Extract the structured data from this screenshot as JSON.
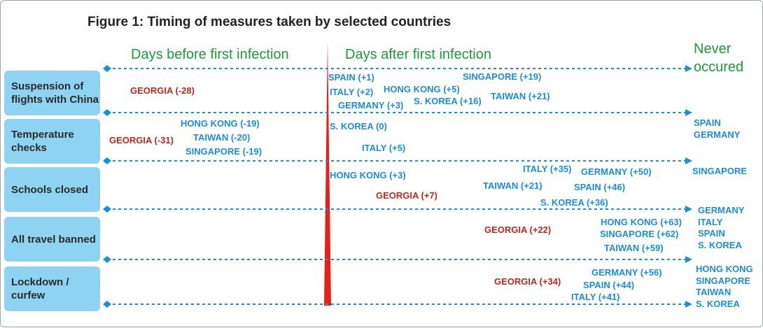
{
  "title": "Figure 1: Timing of measures taken by selected countries",
  "headers": {
    "before": "Days before first infection",
    "after": "Days after first infection",
    "never": "Never occured"
  },
  "colors": {
    "georgia": "#c0281e",
    "other": "#1a8fd6",
    "header": "#1e9a3a",
    "row_box": "#8fd3f2",
    "divider": "#e8201a",
    "axis": "#1a8fd6"
  },
  "chart_data": {
    "type": "scatter",
    "x_unit": "days relative to first infection",
    "categories": [
      "Suspension of flights with China",
      "Temperature checks",
      "Schools closed",
      "All travel banned",
      "Lockdown / curfew"
    ],
    "rows": [
      {
        "measure": "Suspension of flights with China",
        "points": [
          {
            "label": "GEORGIA (-28)",
            "country": "GEORGIA",
            "day": -28
          },
          {
            "label": "SPAIN (+1)",
            "country": "SPAIN",
            "day": 1
          },
          {
            "label": "ITALY (+2)",
            "country": "ITALY",
            "day": 2
          },
          {
            "label": "HONG KONG (+5)",
            "country": "HONG KONG",
            "day": 5
          },
          {
            "label": "GERMANY (+3)",
            "country": "GERMANY",
            "day": 3
          },
          {
            "label": "S. KOREA (+16)",
            "country": "S. KOREA",
            "day": 16
          },
          {
            "label": "SINGAPORE (+19)",
            "country": "SINGAPORE",
            "day": 19
          },
          {
            "label": "TAIWAN (+21)",
            "country": "TAIWAN",
            "day": 21
          }
        ],
        "never": []
      },
      {
        "measure": "Temperature checks",
        "points": [
          {
            "label": "HONG KONG (-19)",
            "country": "HONG KONG",
            "day": -19
          },
          {
            "label": "GEORGIA (-31)",
            "country": "GEORGIA",
            "day": -31
          },
          {
            "label": "TAIWAN (-20)",
            "country": "TAIWAN",
            "day": -20
          },
          {
            "label": "SINGAPORE (-19)",
            "country": "SINGAPORE",
            "day": -19
          },
          {
            "label": "S. KOREA (0)",
            "country": "S. KOREA",
            "day": 0
          },
          {
            "label": "ITALY (+5)",
            "country": "ITALY",
            "day": 5
          }
        ],
        "never": [
          "SPAIN",
          "GERMANY"
        ]
      },
      {
        "measure": "Schools closed",
        "points": [
          {
            "label": "HONG KONG (+3)",
            "country": "HONG KONG",
            "day": 3
          },
          {
            "label": "GEORGIA (+7)",
            "country": "GEORGIA",
            "day": 7
          },
          {
            "label": "ITALY (+35)",
            "country": "ITALY",
            "day": 35
          },
          {
            "label": "GERMANY (+50)",
            "country": "GERMANY",
            "day": 50
          },
          {
            "label": "TAIWAN (+21)",
            "country": "TAIWAN",
            "day": 21
          },
          {
            "label": "SPAIN (+46)",
            "country": "SPAIN",
            "day": 46
          },
          {
            "label": "S. KOREA (+36)",
            "country": "S. KOREA",
            "day": 36
          }
        ],
        "never": [
          "SINGAPORE"
        ]
      },
      {
        "measure": "All travel banned",
        "points": [
          {
            "label": "GEORGIA (+22)",
            "country": "GEORGIA",
            "day": 22
          },
          {
            "label": "HONG KONG (+63)",
            "country": "HONG KONG",
            "day": 63
          },
          {
            "label": "SINGAPORE (+62)",
            "country": "SINGAPORE",
            "day": 62
          },
          {
            "label": "TAIWAN (+59)",
            "country": "TAIWAN",
            "day": 59
          }
        ],
        "never": [
          "GERMANY",
          "ITALY",
          "SPAIN",
          "S. KOREA"
        ]
      },
      {
        "measure": "Lockdown / curfew",
        "points": [
          {
            "label": "GEORGIA (+34)",
            "country": "GEORGIA",
            "day": 34
          },
          {
            "label": "GERMANY (+56)",
            "country": "GERMANY",
            "day": 56
          },
          {
            "label": "SPAIN (+44)",
            "country": "SPAIN",
            "day": 44
          },
          {
            "label": "ITALY (+41)",
            "country": "ITALY",
            "day": 41
          }
        ],
        "never": [
          "HONG KONG",
          "SINGAPORE",
          "TAIWAN",
          "S. KOREA"
        ]
      }
    ]
  }
}
